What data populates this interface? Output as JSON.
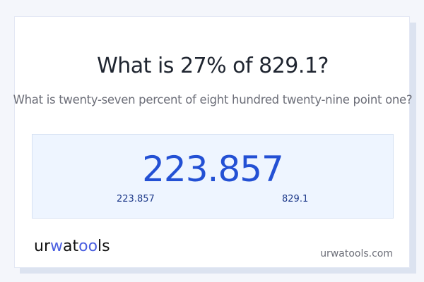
{
  "title": "What is 27% of 829.1?",
  "subtitle": "What is twenty-seven percent of eight hundred twenty-nine point one?",
  "result": {
    "value": "223.857",
    "left_value": "223.857",
    "right_value": "829.1"
  },
  "brand": {
    "logo_text": "urwatools",
    "logo_parts": [
      "ur",
      "w",
      "at",
      "oo",
      "ls"
    ],
    "domain": "urwatools.com"
  },
  "colors": {
    "accent": "#2350d4",
    "logo_accent": "#4a5fe0",
    "box_bg": "#eef5ff"
  }
}
